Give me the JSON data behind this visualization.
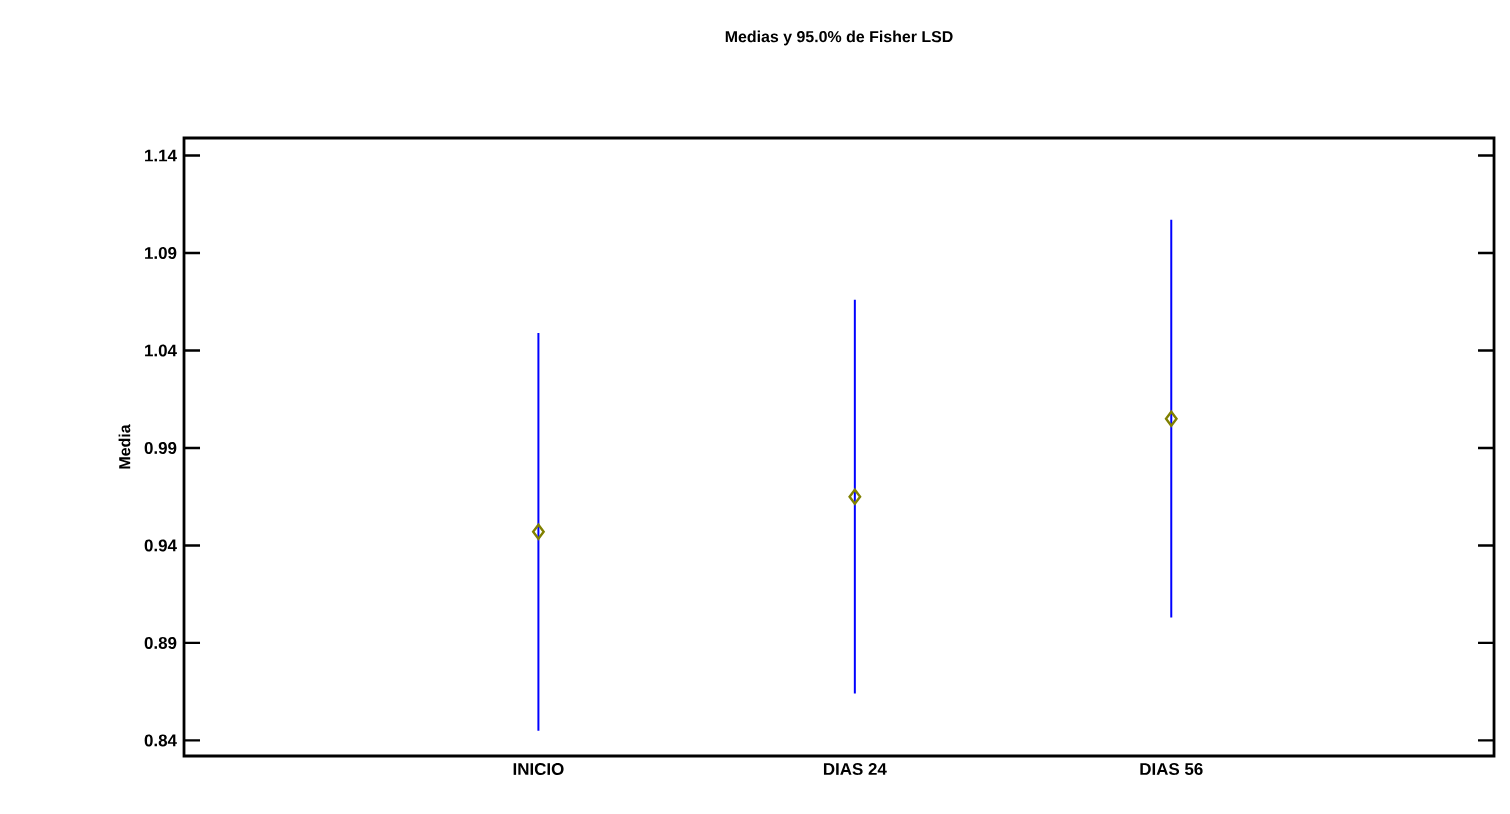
{
  "chart_data": {
    "type": "scatter",
    "title": "Medias y 95.0% de Fisher LSD",
    "ylabel": "Media",
    "categories": [
      "INICIO",
      "DIAS 24",
      "DIAS 56"
    ],
    "series": [
      {
        "color": "#808000",
        "values": [
          0.947,
          0.965,
          1.005
        ],
        "errors": [
          0.102,
          0.101,
          0.102
        ]
      }
    ],
    "marker": "diamond",
    "ylim": [
      0.832,
      1.149
    ],
    "yticks": [
      0.84,
      0.89,
      0.94,
      0.99,
      1.04,
      1.09,
      1.14
    ],
    "grid": false
  }
}
